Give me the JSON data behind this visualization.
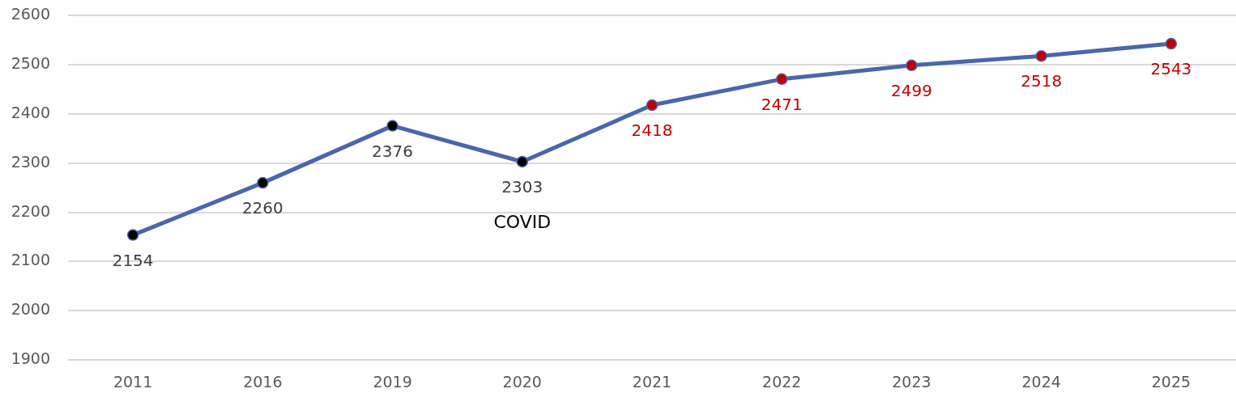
{
  "chart_data": {
    "type": "line",
    "categories": [
      "2011",
      "2016",
      "2019",
      "2020",
      "2021",
      "2022",
      "2023",
      "2024",
      "2025"
    ],
    "series": [
      {
        "color": "#4a66ac",
        "colors": [
          "#000000",
          "#000000",
          "#000000",
          "#000000",
          "#c00000",
          "#c00000",
          "#c00000",
          "#c00000",
          "#c00000"
        ],
        "values": [
          2154,
          2260,
          2376,
          2303,
          2418,
          2471,
          2499,
          2518,
          2543
        ]
      }
    ],
    "ylim": [
      1900,
      2600
    ],
    "yticks": [
      1900,
      2000,
      2100,
      2200,
      2300,
      2400,
      2500,
      2600
    ],
    "grid": "y",
    "marker": "circle",
    "line_style": "solid",
    "data_labels": true,
    "annotations": [
      "COVID"
    ]
  }
}
